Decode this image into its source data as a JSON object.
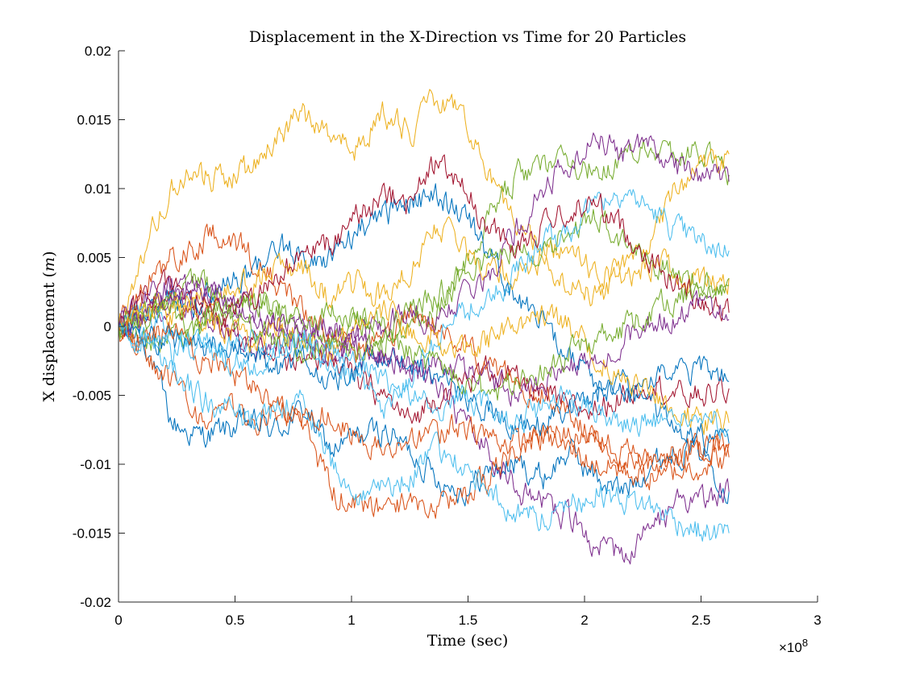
{
  "chart_data": {
    "type": "line",
    "title": "Displacement in the X-Direction vs Time for 20 Particles",
    "xlabel": "Time (sec)",
    "ylabel": "X displacement (m)",
    "ylabel_parts": {
      "before": "X displacement (",
      "italic": "m",
      "after": ")"
    },
    "xlim": [
      0,
      3
    ],
    "ylim": [
      -0.02,
      0.02
    ],
    "x_exponent": {
      "base": "×10",
      "power": "8"
    },
    "x_ticks": [
      0,
      0.5,
      1,
      1.5,
      2,
      2.5,
      3
    ],
    "x_tick_labels": [
      "0",
      "0.5",
      "1",
      "1.5",
      "2",
      "2.5",
      "3"
    ],
    "y_ticks": [
      -0.02,
      -0.015,
      -0.01,
      -0.005,
      0,
      0.005,
      0.01,
      0.015,
      0.02
    ],
    "y_tick_labels": [
      "-0.02",
      "-0.015",
      "-0.01",
      "-0.005",
      "0",
      "0.005",
      "0.01",
      "0.015",
      "0.02"
    ],
    "grid": false,
    "legend": "none",
    "series_x_start": 0,
    "series_x_end": 2.62,
    "series": [
      {
        "color": "#0072BD",
        "values": [
          0,
          -0.001,
          -0.007,
          -0.008,
          -0.0075,
          -0.007,
          -0.0075,
          -0.006,
          -0.009,
          -0.008,
          -0.0075,
          -0.009,
          -0.011,
          -0.012,
          -0.0105,
          -0.01,
          -0.011,
          -0.009,
          -0.011,
          -0.012,
          -0.01,
          -0.009,
          -0.009,
          -0.012
        ]
      },
      {
        "color": "#D95319",
        "values": [
          0,
          -0.002,
          -0.004,
          -0.007,
          -0.006,
          -0.007,
          -0.006,
          -0.007,
          -0.012,
          -0.013,
          -0.0135,
          -0.0125,
          -0.0135,
          -0.012,
          -0.011,
          -0.009,
          -0.008,
          -0.0075,
          -0.008,
          -0.0095,
          -0.01,
          -0.0095,
          -0.009,
          -0.0085
        ]
      },
      {
        "color": "#EDB120",
        "values": [
          0,
          0.006,
          0.01,
          0.011,
          0.0105,
          0.0115,
          0.014,
          0.0155,
          0.0135,
          0.013,
          0.0155,
          0.014,
          0.0165,
          0.0155,
          0.011,
          0.007,
          0.006,
          0.005,
          0.004,
          0.0035,
          0.0045,
          0.004,
          0.003,
          0.0035
        ]
      },
      {
        "color": "#7E2F8E",
        "values": [
          0,
          0.001,
          0.002,
          0.001,
          0,
          -0.002,
          -0.001,
          0,
          -0.001,
          -0.002,
          -0.002,
          -0.003,
          -0.004,
          -0.007,
          -0.009,
          -0.012,
          -0.013,
          -0.014,
          -0.016,
          -0.0165,
          -0.015,
          -0.013,
          -0.0125,
          -0.012
        ]
      },
      {
        "color": "#77AC30",
        "values": [
          0,
          -0.001,
          -0.001,
          0,
          0.001,
          0.002,
          0.001,
          -0.001,
          -0.001,
          0,
          -0.001,
          0,
          0.001,
          0.004,
          0.008,
          0.011,
          0.0115,
          0.012,
          0.0115,
          0.012,
          0.013,
          0.0125,
          0.0125,
          0.011
        ]
      },
      {
        "color": "#4DBEEE",
        "values": [
          0,
          -0.001,
          -0.003,
          -0.005,
          -0.006,
          -0.007,
          -0.006,
          -0.005,
          -0.01,
          -0.012,
          -0.0115,
          -0.011,
          -0.009,
          -0.01,
          -0.012,
          -0.0135,
          -0.014,
          -0.013,
          -0.012,
          -0.0125,
          -0.013,
          -0.014,
          -0.015,
          -0.015
        ]
      },
      {
        "color": "#A2142F",
        "values": [
          0,
          0.001,
          0.002,
          0.001,
          0,
          -0.001,
          -0.002,
          -0.003,
          -0.002,
          -0.004,
          -0.005,
          -0.007,
          -0.005,
          -0.004,
          -0.003,
          -0.004,
          -0.005,
          -0.006,
          -0.006,
          -0.005,
          -0.004,
          -0.005,
          -0.005,
          -0.0045
        ]
      },
      {
        "color": "#0072BD",
        "values": [
          0,
          0.001,
          0.002,
          0.002,
          0.003,
          0.004,
          0.006,
          0.005,
          0.005,
          0.007,
          0.008,
          0.009,
          0.0095,
          0.008,
          0.005,
          0.002,
          0,
          -0.002,
          -0.004,
          -0.005,
          -0.004,
          -0.0035,
          -0.003,
          -0.004
        ]
      },
      {
        "color": "#D95319",
        "values": [
          0,
          0.003,
          0.005,
          0.006,
          0.007,
          0.005,
          0.003,
          0.001,
          -0.001,
          -0.002,
          -0.001,
          0.001,
          0,
          -0.001,
          -0.003,
          -0.004,
          -0.005,
          -0.006,
          -0.008,
          -0.009,
          -0.01,
          -0.0095,
          -0.009,
          -0.0085
        ]
      },
      {
        "color": "#EDB120",
        "values": [
          0,
          0.001,
          0.001,
          0.002,
          0.003,
          0.003,
          0.004,
          0.004,
          0.002,
          0.003,
          0.002,
          0.004,
          0.007,
          0.006,
          0.004,
          0.004,
          0.005,
          0.003,
          0.002,
          0.004,
          0.006,
          0.01,
          0.0115,
          0.0125
        ]
      },
      {
        "color": "#7E2F8E",
        "values": [
          0,
          0.002,
          0.003,
          0.003,
          0.002,
          0.001,
          0,
          -0.001,
          0,
          -0.001,
          0,
          0.001,
          0,
          0.002,
          0.004,
          0.007,
          0.01,
          0.012,
          0.0135,
          0.0125,
          0.013,
          0.0115,
          0.011,
          0.0105
        ]
      },
      {
        "color": "#77AC30",
        "values": [
          0,
          0.001,
          0.002,
          0.003,
          0.002,
          0.002,
          0.001,
          0,
          0.001,
          0.001,
          0,
          0.001,
          0.002,
          0.004,
          0.005,
          0.006,
          0.005,
          0.007,
          0.008,
          0.006,
          0.005,
          0.004,
          0.003,
          0.003
        ]
      },
      {
        "color": "#4DBEEE",
        "values": [
          0,
          0.001,
          0,
          -0.001,
          -0.002,
          -0.001,
          -0.002,
          -0.001,
          -0.003,
          -0.004,
          -0.006,
          -0.004,
          -0.001,
          0.001,
          0.002,
          0.004,
          0.006,
          0.007,
          0.009,
          0.01,
          0.0085,
          0.007,
          0.006,
          0.0055
        ]
      },
      {
        "color": "#A2142F",
        "values": [
          0,
          0.002,
          0.003,
          0.002,
          0.001,
          0.002,
          0.004,
          0.005,
          0.006,
          0.008,
          0.0095,
          0.009,
          0.012,
          0.01,
          0.007,
          0.006,
          0.007,
          0.0085,
          0.009,
          0.007,
          0.005,
          0.003,
          0.002,
          0.001
        ]
      },
      {
        "color": "#0072BD",
        "values": [
          0,
          -0.001,
          -0.001,
          -0.002,
          -0.001,
          -0.002,
          -0.003,
          -0.002,
          -0.004,
          -0.003,
          -0.002,
          -0.003,
          -0.003,
          -0.005,
          -0.006,
          -0.007,
          -0.007,
          -0.006,
          -0.005,
          -0.004,
          -0.006,
          -0.007,
          -0.008,
          -0.0085
        ]
      },
      {
        "color": "#D95319",
        "values": [
          0,
          -0.001,
          0,
          -0.002,
          -0.003,
          -0.004,
          -0.006,
          -0.007,
          -0.006,
          -0.008,
          -0.009,
          -0.008,
          -0.008,
          -0.007,
          -0.008,
          -0.0085,
          -0.008,
          -0.009,
          -0.01,
          -0.0105,
          -0.011,
          -0.0105,
          -0.01,
          -0.0095
        ]
      },
      {
        "color": "#EDB120",
        "values": [
          0,
          0.001,
          0.002,
          0.001,
          0,
          -0.001,
          0,
          -0.001,
          -0.002,
          0,
          0.001,
          0,
          -0.001,
          -0.002,
          -0.001,
          0,
          0.001,
          0,
          -0.002,
          -0.004,
          -0.005,
          -0.006,
          -0.007,
          -0.007
        ]
      },
      {
        "color": "#7E2F8E",
        "values": [
          0,
          0.001,
          0.002,
          0.003,
          0.002,
          0.001,
          0,
          -0.001,
          -0.002,
          -0.001,
          -0.002,
          -0.003,
          -0.003,
          -0.003,
          -0.004,
          -0.005,
          -0.004,
          -0.003,
          -0.002,
          -0.001,
          0,
          0.0005,
          0.0015,
          0.0005
        ]
      },
      {
        "color": "#77AC30",
        "values": [
          0,
          0.001,
          0.001,
          0,
          0.001,
          0,
          -0.001,
          -0.002,
          -0.001,
          -0.002,
          -0.001,
          -0.002,
          -0.003,
          -0.004,
          -0.005,
          -0.004,
          -0.003,
          -0.002,
          -0.001,
          0,
          0.001,
          0.002,
          0.0025,
          0.0035
        ]
      },
      {
        "color": "#4DBEEE",
        "values": [
          0,
          -0.001,
          -0.002,
          -0.001,
          -0.002,
          -0.003,
          -0.002,
          -0.001,
          -0.002,
          -0.003,
          -0.004,
          -0.005,
          -0.006,
          -0.005,
          -0.006,
          -0.007,
          -0.006,
          -0.005,
          -0.006,
          -0.007,
          -0.007,
          -0.0065,
          -0.007,
          -0.0075
        ]
      }
    ]
  }
}
